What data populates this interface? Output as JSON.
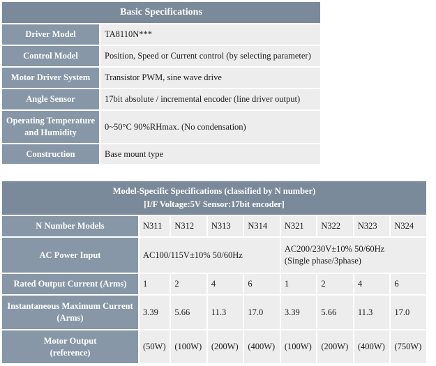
{
  "basic": {
    "title": "Basic Specifications",
    "rows": [
      {
        "label": [
          "Driver Model"
        ],
        "value": "TA8110N***"
      },
      {
        "label": [
          "Control Model"
        ],
        "value": "Position, Speed or Current control (by selecting parameter)"
      },
      {
        "label": [
          "Motor Driver System"
        ],
        "value": "Transistor PWM, sine wave drive"
      },
      {
        "label": [
          "Angle Sensor"
        ],
        "value": "17bit absolute / incremental encoder (line driver output)"
      },
      {
        "label": [
          "Operating Temperature",
          "and Humidity"
        ],
        "value": "0~50°C 90%RHmax. (No condensation)"
      },
      {
        "label": [
          "Construction"
        ],
        "value": "Base mount type"
      }
    ]
  },
  "model": {
    "title_line1": "Model-Specific Specifications (classified by N number)",
    "title_line2": "[I/F Voltage:5V Sensor:17bit encoder]",
    "n_label": "N Number Models",
    "models": [
      "N311",
      "N312",
      "N313",
      "N314",
      "N321",
      "N322",
      "N323",
      "N324"
    ],
    "ac_label": "AC Power Input",
    "ac_group1": "AC100/115V±10% 50/60Hz",
    "ac_group2_line1": "AC200/230V±10% 50/60Hz",
    "ac_group2_line2": "(Single phase/3phase)",
    "rated_label": "Rated Output Current (Arms)",
    "rated": [
      "1",
      "2",
      "4",
      "6",
      "1",
      "2",
      "4",
      "6"
    ],
    "inst_label": [
      "Instantaneous Maximum Current",
      "(Arms)"
    ],
    "inst": [
      "3.39",
      "5.66",
      "11.3",
      "17.0",
      "3.39",
      "5.66",
      "11.3",
      "17.0"
    ],
    "motor_label": [
      "Motor Output",
      "(reference)"
    ],
    "motor": [
      "(50W)",
      "(100W)",
      "(200W)",
      "(400W)",
      "(100W)",
      "(200W)",
      "(400W)",
      "(750W)"
    ]
  }
}
